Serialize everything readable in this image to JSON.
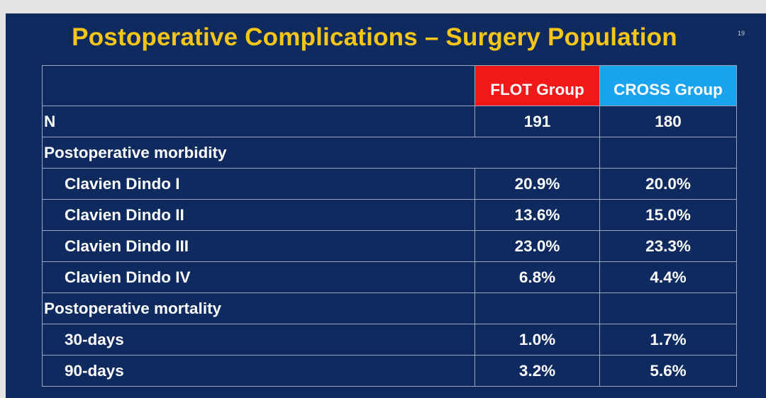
{
  "slide": {
    "title": "Postoperative Complications – Surgery Population",
    "page_number": "19"
  },
  "table": {
    "columns": [
      "",
      "FLOT Group",
      "CROSS Group"
    ],
    "column_colors": {
      "FLOT Group": "#f01818",
      "CROSS Group": "#1aa3ef"
    },
    "rows": [
      {
        "label": "N",
        "flot": "191",
        "cross": "180"
      },
      {
        "label": "Postoperative morbidity",
        "flot": "",
        "cross": ""
      },
      {
        "label": "Clavien Dindo I",
        "flot": "20.9%",
        "cross": "20.0%"
      },
      {
        "label": "Clavien Dindo II",
        "flot": "13.6%",
        "cross": "15.0%"
      },
      {
        "label": "Clavien Dindo III",
        "flot": "23.0%",
        "cross": "23.3%"
      },
      {
        "label": "Clavien Dindo IV",
        "flot": "6.8%",
        "cross": "4.4%"
      },
      {
        "label": "Postoperative mortality",
        "flot": "",
        "cross": ""
      },
      {
        "label": "30-days",
        "flot": "1.0%",
        "cross": "1.7%"
      },
      {
        "label": "90-days",
        "flot": "3.2%",
        "cross": "5.6%"
      }
    ]
  }
}
